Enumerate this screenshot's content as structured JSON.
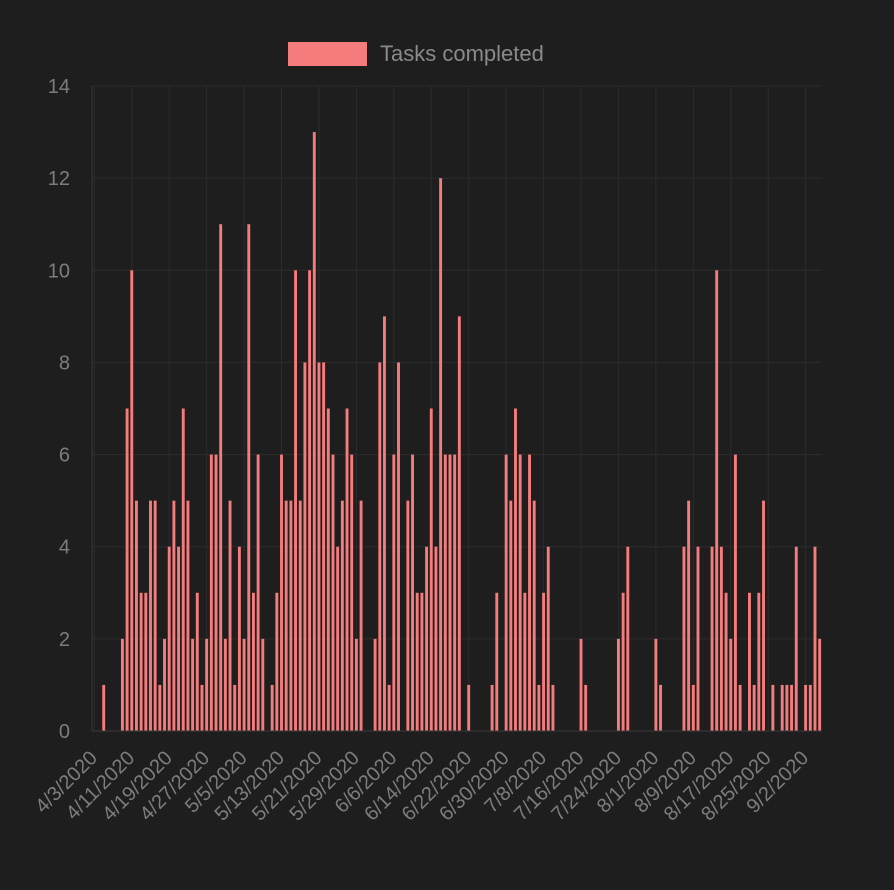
{
  "chart_data": {
    "type": "bar",
    "series": [
      {
        "name": "Tasks completed",
        "color": "#f47c7c",
        "values": [
          0,
          0,
          1,
          0,
          0,
          0,
          2,
          7,
          10,
          5,
          3,
          3,
          5,
          5,
          1,
          2,
          4,
          5,
          4,
          7,
          5,
          2,
          3,
          1,
          2,
          6,
          6,
          11,
          2,
          5,
          1,
          4,
          2,
          11,
          3,
          6,
          2,
          0,
          1,
          3,
          6,
          5,
          5,
          10,
          5,
          8,
          10,
          13,
          8,
          8,
          7,
          6,
          4,
          5,
          7,
          6,
          2,
          5,
          0,
          0,
          2,
          8,
          9,
          1,
          6,
          8,
          0,
          5,
          6,
          3,
          3,
          4,
          7,
          4,
          12,
          6,
          6,
          6,
          9,
          0,
          1,
          0,
          0,
          0,
          0,
          1,
          3,
          0,
          6,
          5,
          7,
          6,
          3,
          6,
          5,
          1,
          3,
          4,
          1,
          0,
          0,
          0,
          0,
          0,
          2,
          1,
          0,
          0,
          0,
          0,
          0,
          0,
          2,
          3,
          4,
          0,
          0,
          0,
          0,
          0,
          2,
          1,
          0,
          0,
          0,
          0,
          4,
          5,
          1,
          4,
          0,
          0,
          4,
          10,
          4,
          3,
          2,
          6,
          1,
          0,
          3,
          1,
          3,
          5,
          0,
          1,
          0,
          1,
          1,
          1,
          4,
          0,
          1,
          1,
          4,
          2
        ]
      }
    ],
    "x_tick_labels": [
      "4/3/2020",
      "4/11/2020",
      "4/19/2020",
      "4/27/2020",
      "5/5/2020",
      "5/13/2020",
      "5/21/2020",
      "5/29/2020",
      "6/6/2020",
      "6/14/2020",
      "6/22/2020",
      "6/30/2020",
      "7/8/2020",
      "7/16/2020",
      "7/24/2020",
      "8/1/2020",
      "8/9/2020",
      "8/17/2020",
      "8/25/2020",
      "9/2/2020"
    ],
    "x_tick_step_days": 8,
    "ylim": [
      0,
      14
    ],
    "y_ticks": [
      0,
      2,
      4,
      6,
      8,
      10,
      12,
      14
    ],
    "grid": true,
    "legend_position": "top-center"
  }
}
